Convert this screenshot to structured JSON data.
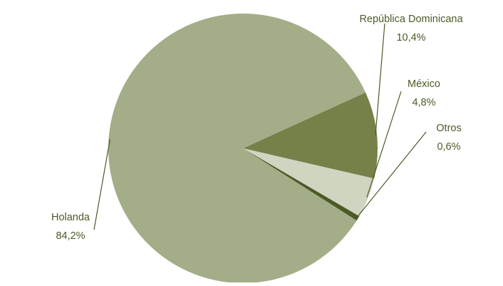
{
  "chart_data": {
    "type": "pie",
    "title": "",
    "slices": [
      {
        "label": "República Dominicana",
        "value": 10.4,
        "value_label": "10,4%",
        "color": "#76814a"
      },
      {
        "label": "México",
        "value": 4.8,
        "value_label": "4,8%",
        "color": "#d0d5c2"
      },
      {
        "label": "Otros",
        "value": 0.6,
        "value_label": "0,6%",
        "color": "#4b5a26"
      },
      {
        "label": "Holanda",
        "value": 84.2,
        "value_label": "84,2%",
        "color": "#a3ad88"
      }
    ],
    "label_color": "#4b5a26",
    "legend": "none"
  }
}
